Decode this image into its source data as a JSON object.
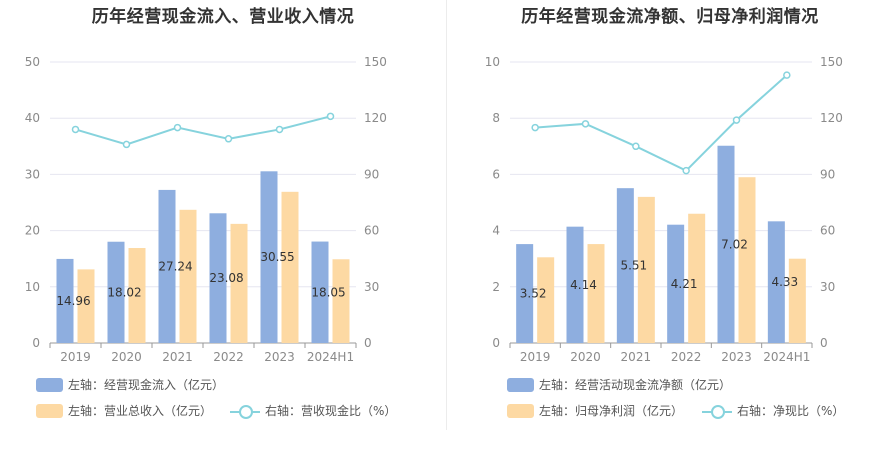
{
  "colors": {
    "bar_primary": "#8eaedf",
    "bar_secondary": "#fdd9a3",
    "line": "#86d3dd",
    "grid": "#e6e6f0",
    "axis_text": "#8a8a8a"
  },
  "charts": [
    {
      "title": "历年经营现金流入、营业收入情况",
      "legend": {
        "bar1": "左轴：经营现金流入（亿元）",
        "bar2": "左轴：营业总收入（亿元）",
        "line": "右轴：营收现金比（%）"
      }
    },
    {
      "title": "历年经营现金流净额、归母净利润情况",
      "legend": {
        "bar1": "左轴：经营活动现金流净额（亿元）",
        "bar2": "左轴：归母净利润（亿元）",
        "line": "右轴：净现比（%）"
      }
    }
  ],
  "chart_data": [
    {
      "type": "bar",
      "title": "历年经营现金流入、营业收入情况",
      "categories": [
        "2019",
        "2020",
        "2021",
        "2022",
        "2023",
        "2024H1"
      ],
      "left_axis": {
        "ylim": [
          0,
          50
        ],
        "ticks": [
          "0",
          "10",
          "20",
          "30",
          "40",
          "50"
        ]
      },
      "right_axis": {
        "ylim": [
          0,
          150
        ],
        "ticks": [
          "0",
          "30",
          "60",
          "90",
          "120",
          "150"
        ]
      },
      "series": [
        {
          "name": "左轴：经营现金流入（亿元）",
          "type": "bar",
          "axis": "left",
          "values": [
            14.96,
            18.02,
            27.24,
            23.08,
            30.55,
            18.05
          ],
          "labels": [
            "14.96",
            "18.02",
            "27.24",
            "23.08",
            "30.55",
            "18.05"
          ]
        },
        {
          "name": "左轴：营业总收入（亿元）",
          "type": "bar",
          "axis": "left",
          "values": [
            13.1,
            16.9,
            23.7,
            21.2,
            26.9,
            14.9
          ]
        },
        {
          "name": "右轴：营收现金比（%）",
          "type": "line",
          "axis": "right",
          "values": [
            114,
            106,
            115,
            109,
            114,
            121
          ]
        }
      ],
      "grid": true,
      "legend_position": "bottom-left"
    },
    {
      "type": "bar",
      "title": "历年经营现金流净额、归母净利润情况",
      "categories": [
        "2019",
        "2020",
        "2021",
        "2022",
        "2023",
        "2024H1"
      ],
      "left_axis": {
        "ylim": [
          0,
          10
        ],
        "ticks": [
          "0",
          "2",
          "4",
          "6",
          "8",
          "10"
        ]
      },
      "right_axis": {
        "ylim": [
          0,
          150
        ],
        "ticks": [
          "0",
          "30",
          "60",
          "90",
          "120",
          "150"
        ]
      },
      "series": [
        {
          "name": "左轴：经营活动现金流净额（亿元）",
          "type": "bar",
          "axis": "left",
          "values": [
            3.52,
            4.14,
            5.51,
            4.21,
            7.02,
            4.33
          ],
          "labels": [
            "3.52",
            "4.14",
            "5.51",
            "4.21",
            "7.02",
            "4.33"
          ]
        },
        {
          "name": "左轴：归母净利润（亿元）",
          "type": "bar",
          "axis": "left",
          "values": [
            3.05,
            3.52,
            5.2,
            4.6,
            5.9,
            3.0
          ]
        },
        {
          "name": "右轴：净现比（%）",
          "type": "line",
          "axis": "right",
          "values": [
            115,
            117,
            105,
            92,
            119,
            143
          ]
        }
      ],
      "grid": true,
      "legend_position": "bottom-left"
    }
  ]
}
